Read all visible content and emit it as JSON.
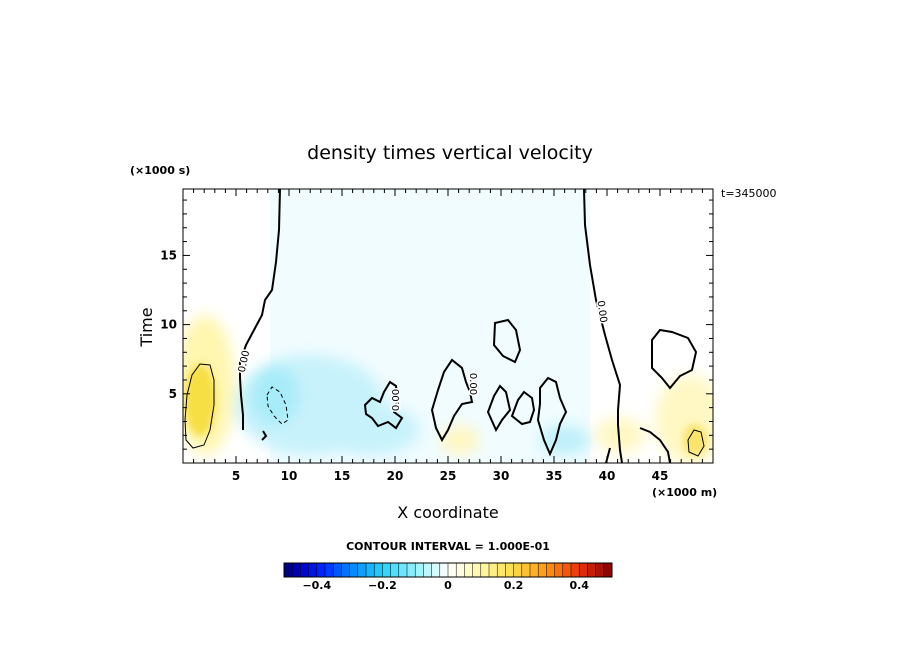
{
  "chart_data": {
    "type": "heatmap",
    "title": "density times vertical velocity",
    "xlabel": "X coordinate",
    "ylabel": "Time",
    "x_unit": "(×1000 m)",
    "y_unit": "(×1000 s)",
    "time_note": "t=345000",
    "xlim": [
      0,
      50
    ],
    "ylim": [
      0,
      19.8
    ],
    "x_ticks": [
      5,
      10,
      15,
      20,
      25,
      30,
      35,
      40,
      45
    ],
    "x_tick_labels": [
      "5",
      "10",
      "15",
      "20",
      "25",
      "30",
      "35",
      "40",
      "45"
    ],
    "y_ticks": [
      5,
      10,
      15
    ],
    "y_tick_labels": [
      "5",
      "10",
      "15"
    ],
    "contour_interval_text": "CONTOUR INTERVAL = 1.000E-01",
    "contour_label": "0.00",
    "colorbar": {
      "range": [
        -0.5,
        0.5
      ],
      "ticks": [
        -0.4,
        -0.2,
        0,
        0.2,
        0.4
      ],
      "tick_labels": [
        "−0.4",
        "−0.2",
        "0",
        "0.2",
        "0.4"
      ]
    },
    "features": [
      {
        "kind": "positive",
        "x": 1.8,
        "y": 4.0,
        "value": 0.2
      },
      {
        "kind": "negative",
        "x": 8.5,
        "y": 4.5,
        "value": -0.1
      },
      {
        "kind": "negative",
        "x": 30,
        "y": 12,
        "value": -0.03
      },
      {
        "kind": "positive",
        "x": 48,
        "y": 2.0,
        "value": 0.12
      }
    ]
  },
  "colors": {
    "negative": "#7fe3f7",
    "positive": "#fff080",
    "strong_positive": "#f6dd3c"
  }
}
